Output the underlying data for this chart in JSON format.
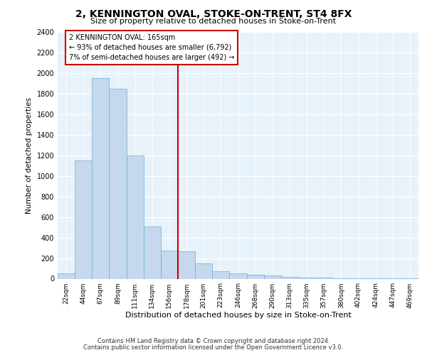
{
  "title": "2, KENNINGTON OVAL, STOKE-ON-TRENT, ST4 8FX",
  "subtitle": "Size of property relative to detached houses in Stoke-on-Trent",
  "xlabel": "Distribution of detached houses by size in Stoke-on-Trent",
  "ylabel": "Number of detached properties",
  "categories": [
    "22sqm",
    "44sqm",
    "67sqm",
    "89sqm",
    "111sqm",
    "134sqm",
    "156sqm",
    "178sqm",
    "201sqm",
    "223sqm",
    "246sqm",
    "268sqm",
    "290sqm",
    "313sqm",
    "335sqm",
    "357sqm",
    "380sqm",
    "402sqm",
    "424sqm",
    "447sqm",
    "469sqm"
  ],
  "values": [
    50,
    1150,
    1950,
    1850,
    1200,
    510,
    270,
    265,
    150,
    70,
    50,
    40,
    30,
    15,
    10,
    7,
    5,
    4,
    3,
    2,
    2
  ],
  "bar_color": "#c5d8ed",
  "bar_edge_color": "#6aaed6",
  "vline_color": "#cc0000",
  "annotation_text": "2 KENNINGTON OVAL: 165sqm\n← 93% of detached houses are smaller (6,792)\n7% of semi-detached houses are larger (492) →",
  "annotation_box_edgecolor": "#cc0000",
  "ylim": [
    0,
    2400
  ],
  "yticks": [
    0,
    200,
    400,
    600,
    800,
    1000,
    1200,
    1400,
    1600,
    1800,
    2000,
    2200,
    2400
  ],
  "background_color": "#e8f2fa",
  "footer_line1": "Contains HM Land Registry data © Crown copyright and database right 2024.",
  "footer_line2": "Contains public sector information licensed under the Open Government Licence v3.0."
}
